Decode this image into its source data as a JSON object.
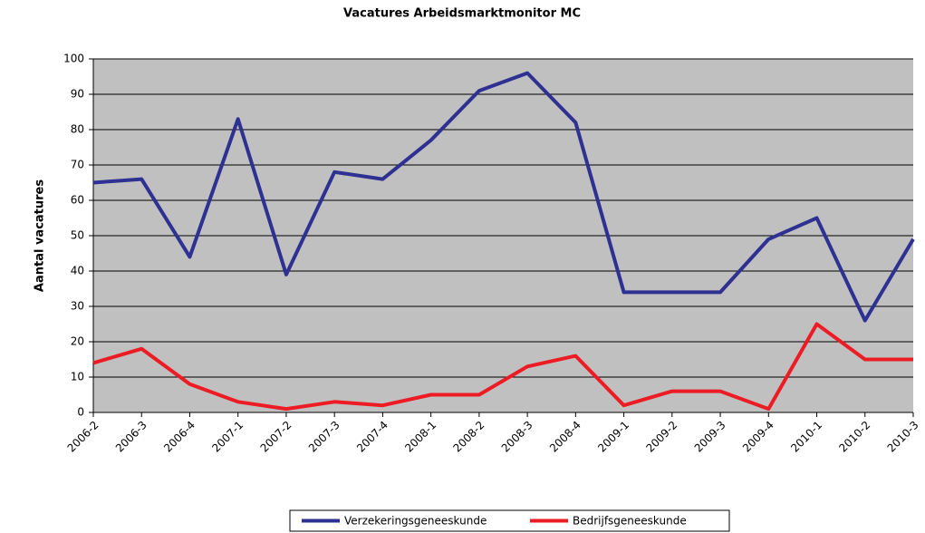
{
  "chart_data": {
    "type": "line",
    "title": "Vacatures Arbeidsmarktmonitor MC",
    "y_label": "Aantal vacatures",
    "categories": [
      "2006-2",
      "2006-3",
      "2006-4",
      "2007-1",
      "2007-2",
      "2007-3",
      "2007-4",
      "2008-1",
      "2008-2",
      "2008-3",
      "2008-4",
      "2009-1",
      "2009-2",
      "2009-3",
      "2009-4",
      "2010-1",
      "2010-2",
      "2010-3"
    ],
    "series": [
      {
        "name": "Verzekeringsgeneeskunde",
        "color": "#2e3192",
        "values": [
          65,
          66,
          44,
          83,
          39,
          68,
          66,
          77,
          91,
          96,
          82,
          34,
          34,
          34,
          49,
          55,
          26,
          49
        ]
      },
      {
        "name": "Bedrijfsgeneeskunde",
        "color": "#ed1c24",
        "values": [
          14,
          18,
          8,
          3,
          1,
          3,
          2,
          5,
          5,
          13,
          16,
          2,
          6,
          6,
          1,
          25,
          15,
          15
        ]
      }
    ],
    "ylim": [
      0,
      100
    ],
    "yticks": [
      0,
      10,
      20,
      30,
      40,
      50,
      60,
      70,
      80,
      90,
      100
    ],
    "grid": true,
    "legend": "bottom"
  }
}
